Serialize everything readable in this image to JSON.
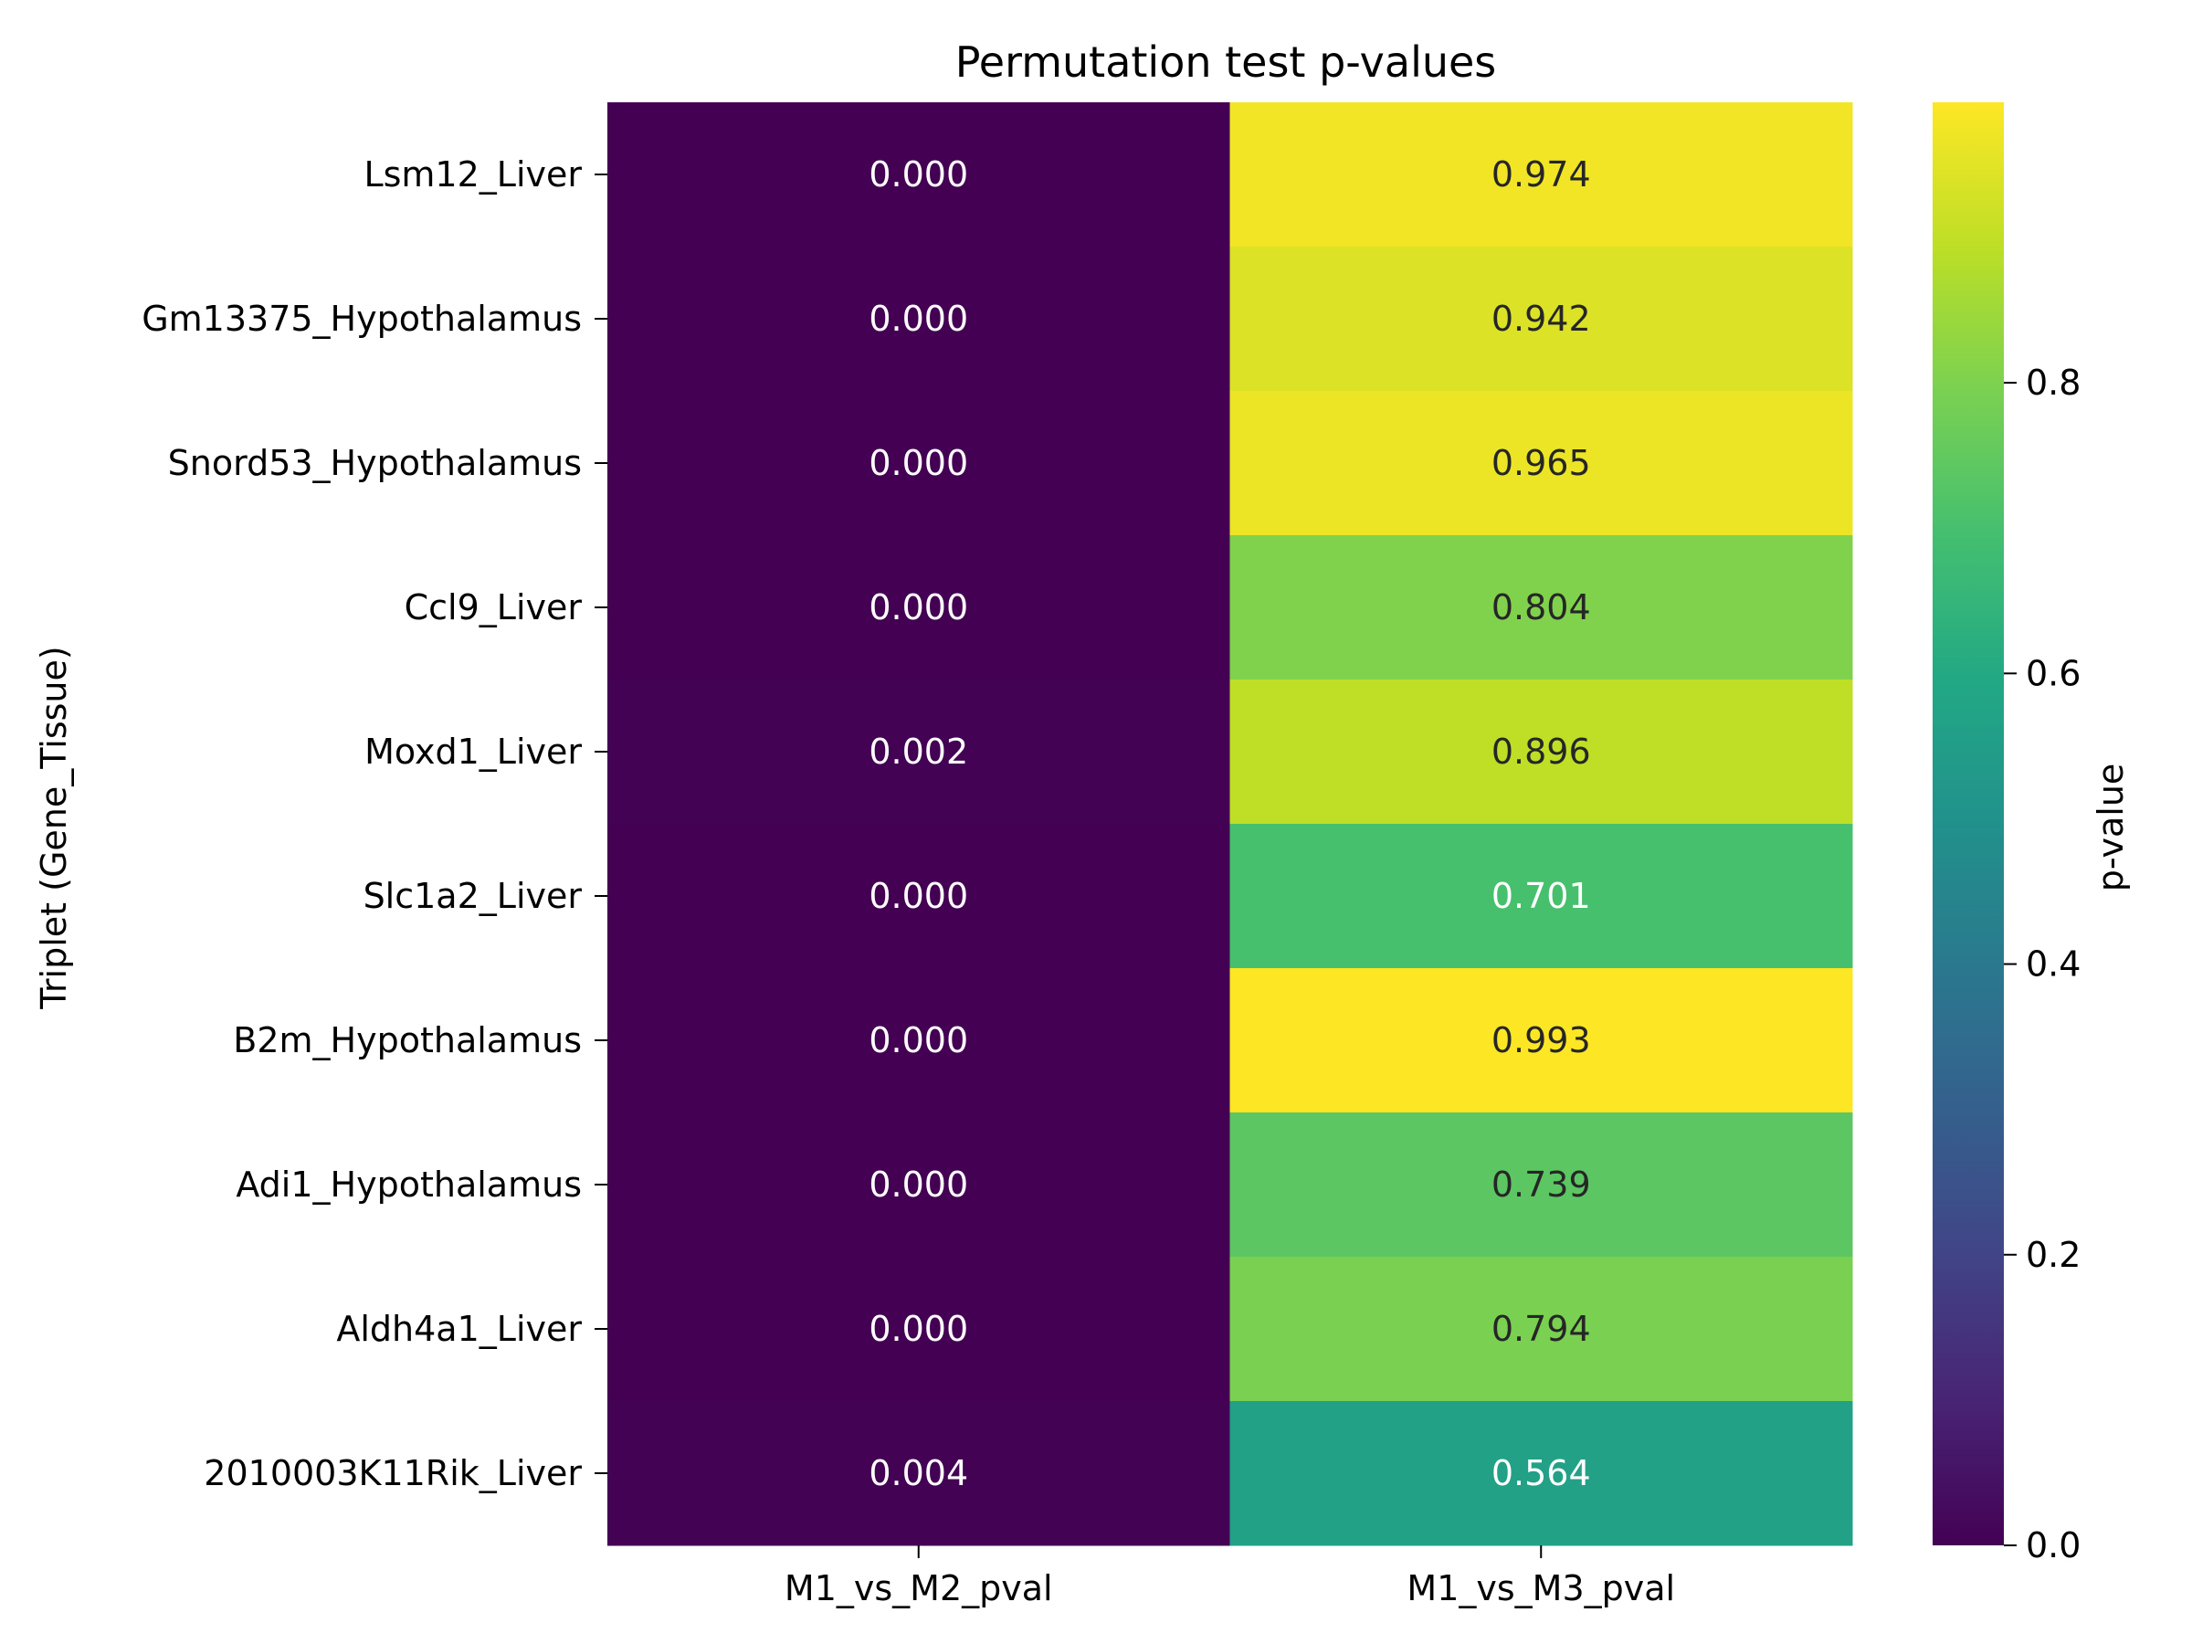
{
  "chart_data": {
    "type": "heatmap",
    "title": "Permutation test p-values",
    "ylabel": "Triplet (Gene_Tissue)",
    "xlabel": "",
    "columns": [
      "M1_vs_M2_pval",
      "M1_vs_M3_pval"
    ],
    "rows": [
      "Lsm12_Liver",
      "Gm13375_Hypothalamus",
      "Snord53_Hypothalamus",
      "Ccl9_Liver",
      "Moxd1_Liver",
      "Slc1a2_Liver",
      "B2m_Hypothalamus",
      "Adi1_Hypothalamus",
      "Aldh4a1_Liver",
      "2010003K11Rik_Liver"
    ],
    "values": [
      [
        0.0,
        0.974
      ],
      [
        0.0,
        0.942
      ],
      [
        0.0,
        0.965
      ],
      [
        0.0,
        0.804
      ],
      [
        0.002,
        0.896
      ],
      [
        0.0,
        0.701
      ],
      [
        0.0,
        0.993
      ],
      [
        0.0,
        0.739
      ],
      [
        0.0,
        0.794
      ],
      [
        0.004,
        0.564
      ]
    ],
    "colormap": "viridis",
    "value_range": [
      0.0,
      0.993
    ],
    "colorbar": {
      "label": "p-value",
      "ticks": [
        0.0,
        0.2,
        0.4,
        0.6,
        0.8
      ],
      "tick_labels": [
        "0.0",
        "0.2",
        "0.4",
        "0.6",
        "0.8"
      ]
    },
    "annotation_format": "3 decimals",
    "colors": {
      "dark_text": "#262626",
      "light_text": "#ffffff",
      "axis": "#000000"
    }
  }
}
